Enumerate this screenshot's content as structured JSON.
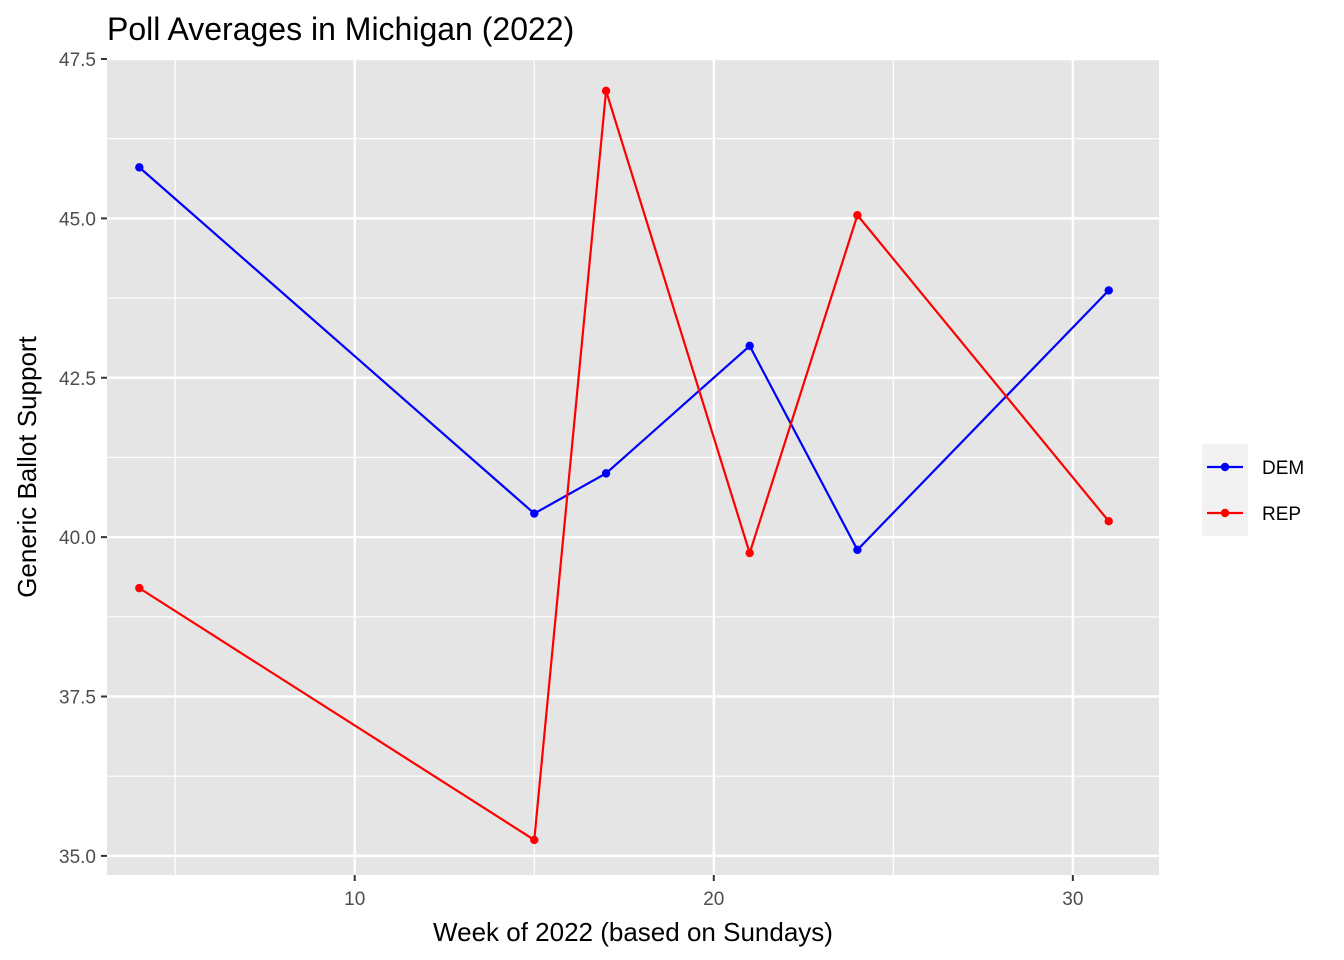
{
  "chart_data": {
    "type": "line",
    "title": "Poll Averages in Michigan (2022)",
    "xlabel": "Week of 2022 (based on Sundays)",
    "ylabel": "Generic Ballot Support",
    "xlim": [
      3.1,
      32.4
    ],
    "ylim": [
      34.7,
      47.5
    ],
    "xticks": [
      10,
      20,
      30
    ],
    "yticks": [
      35.0,
      37.5,
      40.0,
      42.5,
      45.0,
      47.5
    ],
    "xtick_labels": [
      "10",
      "20",
      "30"
    ],
    "ytick_labels": [
      "35.0",
      "37.5",
      "40.0",
      "42.5",
      "45.0",
      "47.5"
    ],
    "grid": true,
    "legend_position": "right",
    "series": [
      {
        "name": "DEM",
        "color": "#0000ff",
        "x": [
          4,
          15,
          17,
          21,
          24,
          31
        ],
        "y": [
          45.8,
          40.37,
          41.0,
          43.0,
          39.8,
          43.87
        ]
      },
      {
        "name": "REP",
        "color": "#ff0000",
        "x": [
          4,
          15,
          17,
          21,
          24,
          31
        ],
        "y": [
          39.2,
          35.25,
          47.0,
          39.75,
          45.05,
          40.25
        ]
      }
    ]
  }
}
